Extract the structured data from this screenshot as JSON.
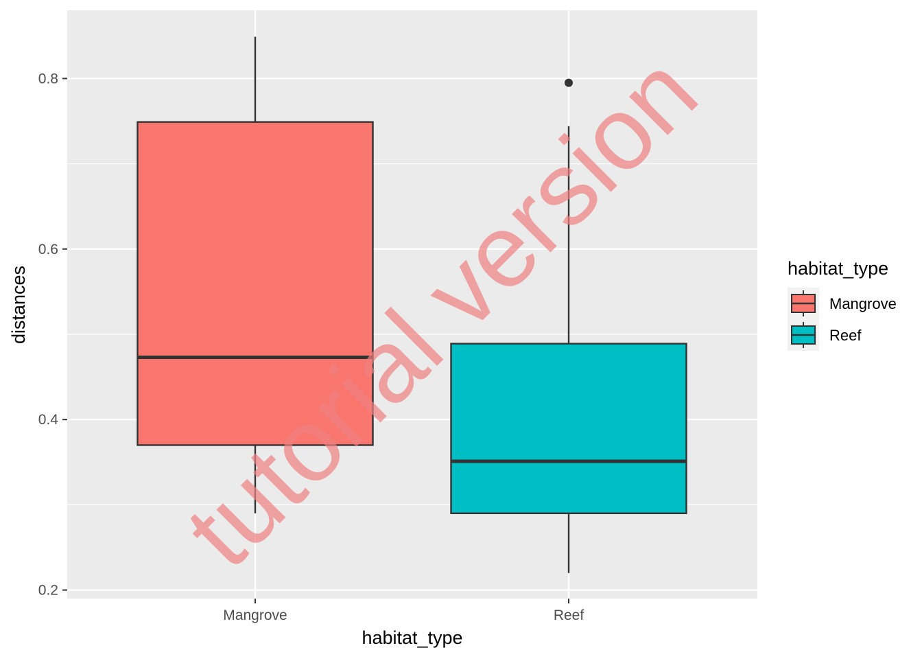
{
  "chart_data": {
    "type": "box",
    "xlabel": "habitat_type",
    "ylabel": "distances",
    "categories": [
      "Mangrove",
      "Reef"
    ],
    "ylim": [
      0.19,
      0.88
    ],
    "y_ticks": [
      0.2,
      0.4,
      0.6,
      0.8
    ],
    "y_tick_labels": [
      "0.2",
      "0.4",
      "0.6",
      "0.8"
    ],
    "grid": true,
    "legend": {
      "title": "habitat_type",
      "placement": "right",
      "entries": [
        "Mangrove",
        "Reef"
      ]
    },
    "series": [
      {
        "category": "Mangrove",
        "color": "#F8766D",
        "whisker_low": 0.29,
        "q1": 0.37,
        "median": 0.473,
        "q3": 0.749,
        "whisker_high": 0.849,
        "outliers": []
      },
      {
        "category": "Reef",
        "color": "#00BFC4",
        "whisker_low": 0.22,
        "q1": 0.29,
        "median": 0.351,
        "q3": 0.489,
        "whisker_high": 0.744,
        "outliers": [
          0.795
        ]
      }
    ],
    "colors": {
      "panel": "#EBEBEB",
      "grid": "#FFFFFF",
      "box_outline": "#333333"
    }
  },
  "watermark": {
    "text": "tutorial version",
    "color": "#F08080"
  }
}
